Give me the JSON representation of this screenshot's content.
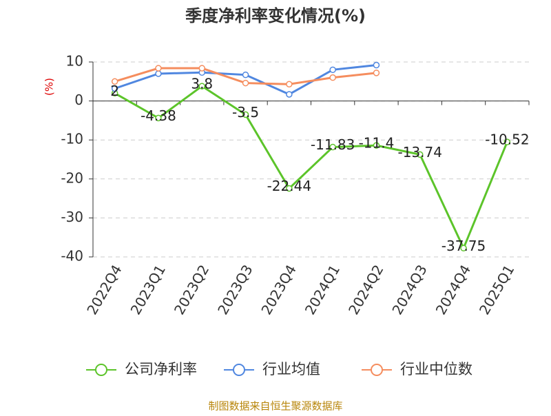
{
  "chart_data": {
    "type": "line",
    "title": "季度净利率变化情况(%)",
    "y_label": "(%)",
    "categories": [
      "2022Q4",
      "2023Q1",
      "2023Q2",
      "2023Q3",
      "2023Q4",
      "2024Q1",
      "2024Q2",
      "2024Q3",
      "2024Q4",
      "2025Q1"
    ],
    "series": [
      {
        "name": "公司净利率",
        "color": "#5cc42a",
        "values": [
          2,
          -4.38,
          3.8,
          -3.5,
          -22.44,
          -11.83,
          -11.4,
          -13.74,
          -37.75,
          -10.52
        ],
        "data_labels": true
      },
      {
        "name": "行业均值",
        "color": "#5087e0",
        "values": [
          3.2,
          7,
          7.3,
          6.7,
          1.7,
          8,
          9.2,
          null,
          null,
          null
        ]
      },
      {
        "name": "行业中位数",
        "color": "#f58d5e",
        "values": [
          5,
          8.4,
          8.4,
          4.6,
          4.3,
          6,
          7.2,
          null,
          null,
          null
        ]
      }
    ],
    "ylim": [
      -40,
      10
    ],
    "yticks": [
      10,
      0,
      -10,
      -20,
      -30,
      -40
    ],
    "grid": true,
    "legend": "bottom",
    "source": "制图数据来自恒生聚源数据库"
  }
}
